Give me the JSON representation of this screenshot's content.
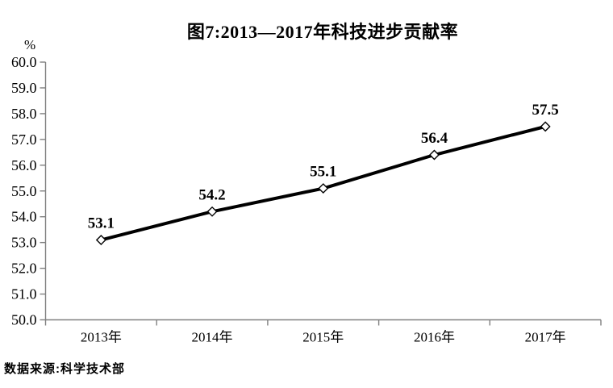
{
  "title": "图7:2013—2017年科技进步贡献率",
  "unit_label": "%",
  "source_note": "数据来源:科学技术部",
  "chart_data": {
    "type": "line",
    "title": "图7:2013—2017年科技进步贡献率",
    "ylabel": "%",
    "xlabel": "",
    "categories": [
      "2013年",
      "2014年",
      "2015年",
      "2016年",
      "2017年"
    ],
    "series": [
      {
        "name": "科技进步贡献率",
        "values": [
          53.1,
          54.2,
          55.1,
          56.4,
          57.5
        ]
      }
    ],
    "ylim": [
      50.0,
      60.0
    ],
    "ytick_interval": 1.0,
    "ytick_decimals": 1,
    "data_label_decimals": 1,
    "grid": false,
    "legend": false,
    "line_color": "#000000",
    "marker": "open-diamond",
    "marker_fill": "#ffffff",
    "axis_color": "#808080",
    "annotation": "数据来源:科学技术部"
  }
}
